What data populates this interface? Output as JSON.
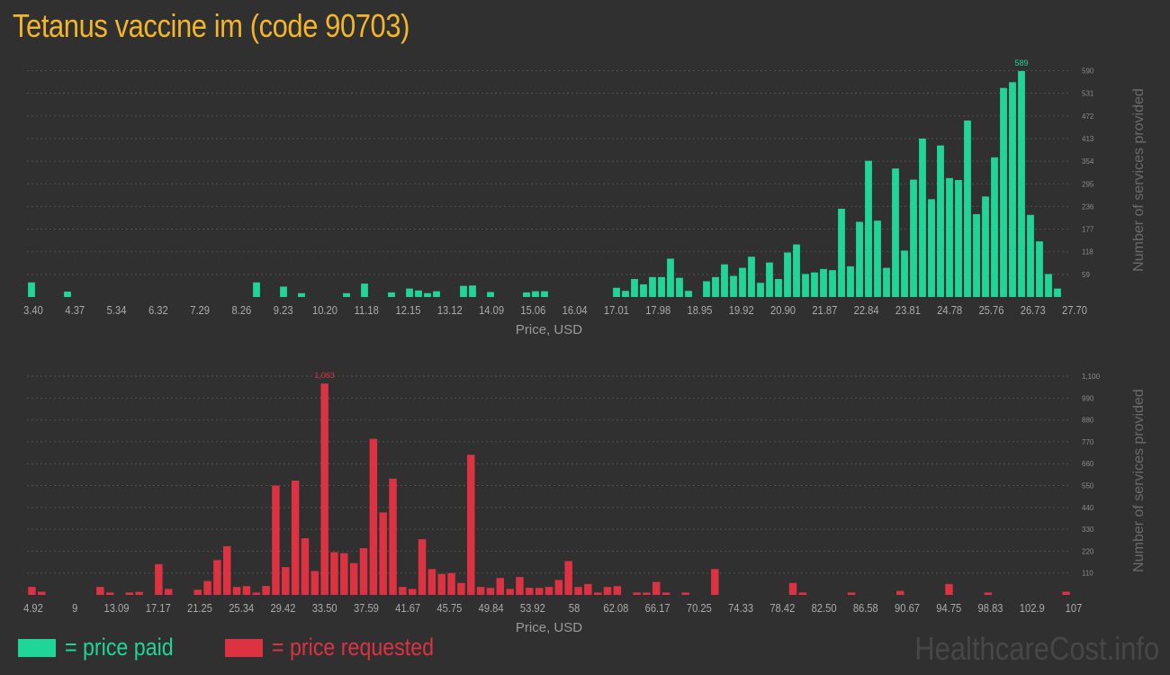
{
  "page": {
    "title": "Tetanus vaccine im (code 90703)"
  },
  "legend": {
    "paid": {
      "label": "= price paid",
      "color": "#1fd597"
    },
    "requested": {
      "label": "= price requested",
      "color": "#dc3242"
    }
  },
  "watermark": "HealthcareCost.info",
  "colors": {
    "grid": "#4f4f4f",
    "background": "#303030"
  },
  "chart_data": [
    {
      "type": "bar",
      "xlabel": "Price, USD",
      "ylabel": "Number of services provided",
      "color": "#1fd597",
      "x_ticks": [
        "3.40",
        "4.37",
        "5.34",
        "6.32",
        "7.29",
        "8.26",
        "9.23",
        "10.20",
        "11.18",
        "12.15",
        "13.12",
        "14.09",
        "15.06",
        "16.04",
        "17.01",
        "17.98",
        "18.95",
        "19.92",
        "20.90",
        "21.87",
        "22.84",
        "23.81",
        "24.78",
        "25.76",
        "26.73",
        "27.70"
      ],
      "y_ticks": [
        "59",
        "118",
        "177",
        "236",
        "295",
        "354",
        "413",
        "472",
        "531",
        "590"
      ],
      "ylim": [
        0,
        610
      ],
      "grid": true,
      "peak_label": "589",
      "values": [
        38,
        0,
        0,
        0,
        14,
        0,
        0,
        0,
        0,
        0,
        0,
        0,
        0,
        0,
        0,
        0,
        0,
        0,
        0,
        0,
        0,
        0,
        0,
        0,
        0,
        38,
        0,
        0,
        27,
        0,
        10,
        0,
        0,
        0,
        0,
        10,
        0,
        35,
        0,
        0,
        12,
        0,
        22,
        17,
        10,
        15,
        0,
        0,
        29,
        30,
        0,
        13,
        0,
        0,
        0,
        12,
        15,
        15,
        0,
        0,
        0,
        0,
        0,
        0,
        0,
        24,
        16,
        47,
        33,
        52,
        52,
        100,
        50,
        16,
        0,
        41,
        52,
        85,
        55,
        76,
        105,
        37,
        90,
        47,
        116,
        137,
        60,
        64,
        73,
        70,
        230,
        80,
        196,
        355,
        199,
        76,
        335,
        121,
        306,
        413,
        255,
        395,
        310,
        305,
        460,
        216,
        262,
        364,
        545,
        560,
        589,
        214,
        145,
        60,
        22,
        0
      ]
    },
    {
      "type": "bar",
      "xlabel": "Price, USD",
      "ylabel": "Number of services provided",
      "color": "#dc3242",
      "x_ticks": [
        "4.92",
        "9",
        "13.09",
        "17.17",
        "21.25",
        "25.34",
        "29.42",
        "33.50",
        "37.59",
        "41.67",
        "45.75",
        "49.84",
        "53.92",
        "58",
        "62.08",
        "66.17",
        "70.25",
        "74.33",
        "78.42",
        "82.50",
        "86.58",
        "90.67",
        "94.75",
        "98.83",
        "102.9",
        "107"
      ],
      "y_ticks": [
        "110",
        "220",
        "330",
        "440",
        "550",
        "660",
        "770",
        "880",
        "990",
        "1,100"
      ],
      "ylim": [
        0,
        1150
      ],
      "grid": true,
      "peak_label": "1,063",
      "values": [
        40,
        16,
        0,
        0,
        0,
        0,
        0,
        40,
        12,
        0,
        12,
        15,
        0,
        155,
        30,
        0,
        0,
        26,
        70,
        175,
        245,
        40,
        44,
        12,
        45,
        550,
        140,
        575,
        285,
        120,
        1063,
        215,
        210,
        160,
        235,
        785,
        415,
        585,
        40,
        30,
        280,
        130,
        105,
        110,
        60,
        705,
        40,
        35,
        85,
        30,
        90,
        36,
        35,
        40,
        75,
        170,
        40,
        55,
        12,
        40,
        44,
        0,
        12,
        12,
        65,
        12,
        0,
        12,
        0,
        0,
        130,
        0,
        0,
        0,
        0,
        0,
        0,
        0,
        60,
        12,
        0,
        0,
        0,
        0,
        12,
        0,
        0,
        0,
        0,
        20,
        0,
        0,
        0,
        0,
        55,
        0,
        0,
        0,
        12,
        0,
        0,
        0,
        0,
        0,
        0,
        0,
        16
      ]
    }
  ]
}
